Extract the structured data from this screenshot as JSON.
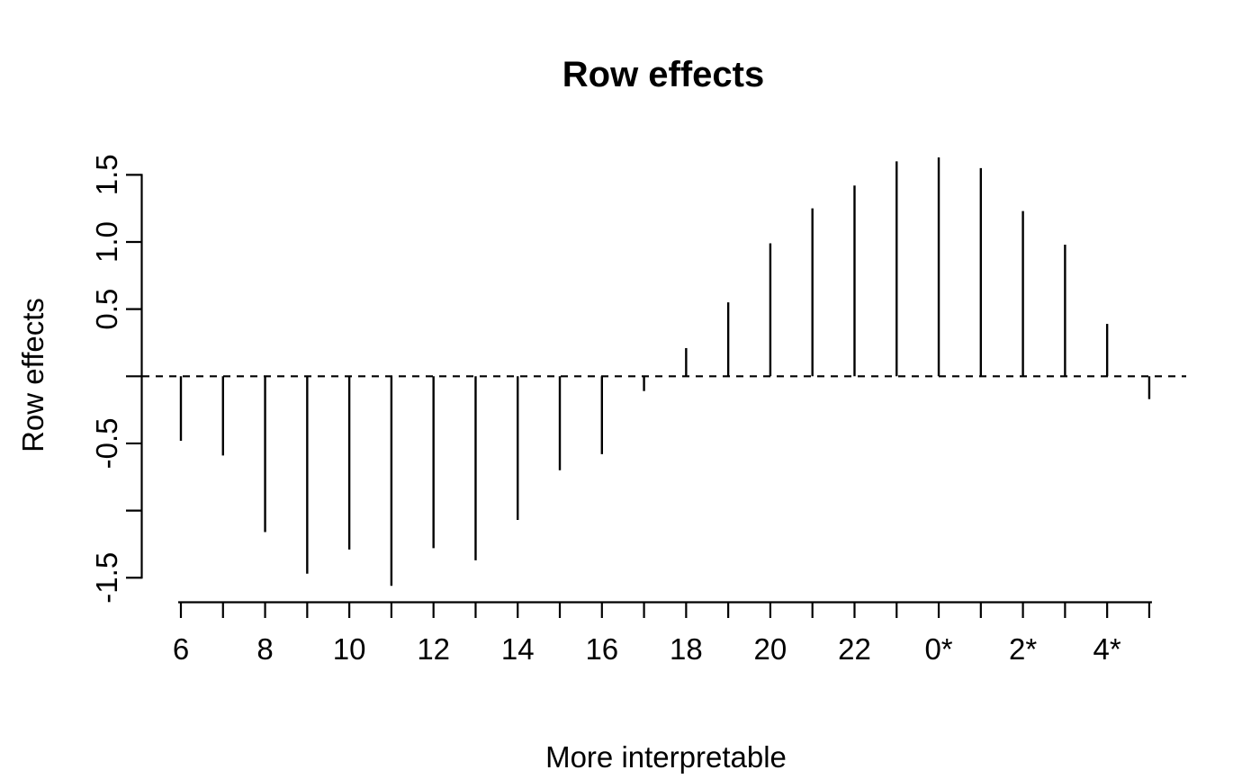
{
  "chart_data": {
    "type": "bar",
    "bar_style": "thin-vertical-spikes-from-zero-baseline",
    "title": "Row effects",
    "xlabel": "More interpretable",
    "ylabel": "Row effects",
    "categories": [
      "6",
      "7",
      "8",
      "9",
      "10",
      "11",
      "12",
      "13",
      "14",
      "15",
      "16",
      "17",
      "18",
      "19",
      "20",
      "21",
      "22",
      "23",
      "0*",
      "1*",
      "2*",
      "3*",
      "4*",
      "5*"
    ],
    "values": [
      -0.48,
      -0.59,
      -1.16,
      -1.47,
      -1.29,
      -1.56,
      -1.28,
      -1.37,
      -1.07,
      -0.7,
      -0.58,
      -0.11,
      0.21,
      0.55,
      0.99,
      1.25,
      1.42,
      1.6,
      1.63,
      1.55,
      1.23,
      0.98,
      0.39,
      -0.17
    ],
    "x_labeled_categories": [
      "6",
      "8",
      "10",
      "12",
      "14",
      "16",
      "18",
      "20",
      "22",
      "0*",
      "2*",
      "4*"
    ],
    "x_ticks_every_category": true,
    "y_ticks": [
      {
        "value": 1.5,
        "label": "1.5"
      },
      {
        "value": 1.0,
        "label": "1.0"
      },
      {
        "value": 0.5,
        "label": "0.5"
      },
      {
        "value": 0.0,
        "label": ""
      },
      {
        "value": -0.5,
        "label": "-0.5"
      },
      {
        "value": -1.0,
        "label": ""
      },
      {
        "value": -1.5,
        "label": "-1.5"
      }
    ],
    "ylim": [
      -1.65,
      1.75
    ],
    "zero_line_style": "dashed",
    "grid": false,
    "legend": null,
    "box": false,
    "colors": {
      "foreground": "#000000",
      "background": "#ffffff"
    }
  }
}
